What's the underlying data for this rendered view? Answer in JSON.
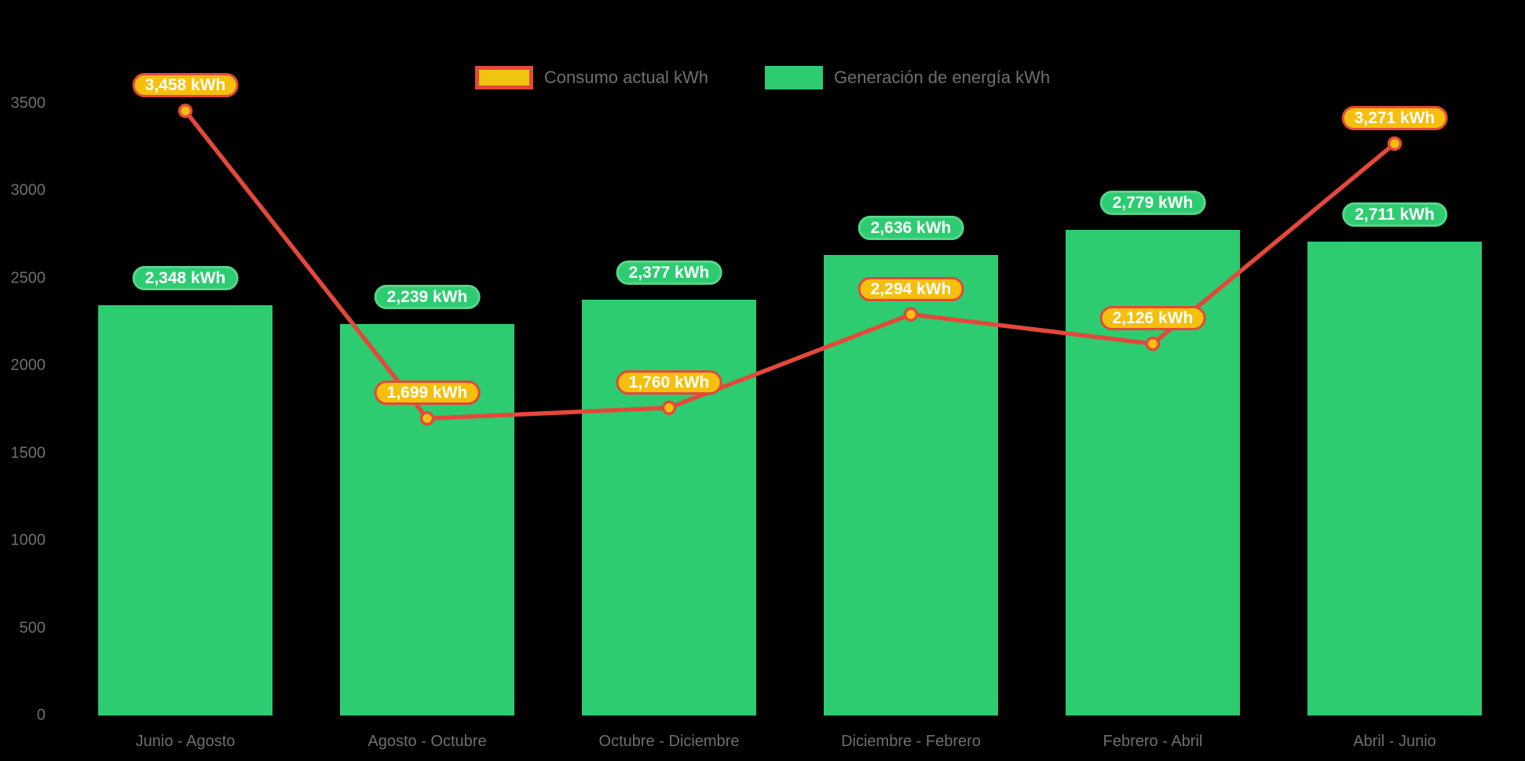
{
  "chart_data": {
    "type": "combo",
    "categories": [
      "Junio - Agosto",
      "Agosto - Octubre",
      "Octubre - Diciembre",
      "Diciembre - Febrero",
      "Febrero - Abril",
      "Abril - Junio"
    ],
    "series": [
      {
        "name": "Consumo actual kWh",
        "type": "line",
        "values": [
          3458,
          1699,
          1760,
          2294,
          2126,
          3271
        ],
        "labels": [
          "3,458 kWh",
          "1,699 kWh",
          "1,760 kWh",
          "2,294 kWh",
          "2,126 kWh",
          "3,271 kWh"
        ],
        "line_color": "#E4483B",
        "marker_fill": "#F5BF0E",
        "label_bg": "#F5BF0E",
        "label_border": "#E4483B"
      },
      {
        "name": "Generación de energía kWh",
        "type": "bar",
        "values": [
          2348,
          2239,
          2377,
          2636,
          2779,
          2711
        ],
        "labels": [
          "2,348 kWh",
          "2,239 kWh",
          "2,377 kWh",
          "2,636 kWh",
          "2,779 kWh",
          "2,711 kWh"
        ],
        "bar_color": "#2ECC71",
        "label_bg": "#2ECC71",
        "label_border": "#55D68B"
      }
    ],
    "title": "",
    "xlabel": "",
    "ylabel": "",
    "ylim": [
      0,
      3500
    ],
    "yticks": [
      "0",
      "500",
      "1000",
      "1500",
      "2000",
      "2500",
      "3000",
      "3500"
    ],
    "grid": false,
    "legend_position": "top",
    "axis_text_color": "#6F6F6F",
    "background_color": "#000000",
    "label_text_color": "#FFFFFF"
  },
  "legend": {
    "items": [
      {
        "label": "Consumo actual kWh",
        "fill": "#F1C40F",
        "border": "#E4483B"
      },
      {
        "label": "Generación de energía kWh",
        "fill": "#2ECC71",
        "border": "#2ECC71"
      }
    ]
  }
}
